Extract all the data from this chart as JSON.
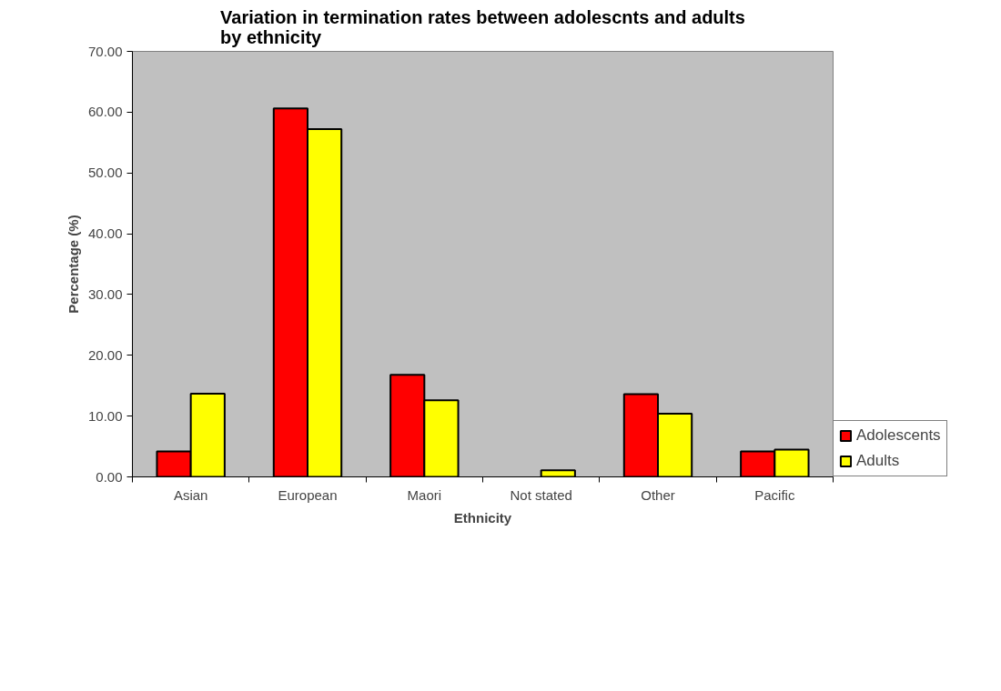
{
  "chart_data": {
    "type": "bar",
    "title": "Variation in termination rates between adolescnts and adults by ethnicity",
    "xlabel": "Ethnicity",
    "ylabel": "Percentage (%)",
    "categories": [
      "Asian",
      "European",
      "Maori",
      "Not stated",
      "Other",
      "Pacific"
    ],
    "series": [
      {
        "name": "Adolescents",
        "color": "#ff0000",
        "values": [
          4.2,
          60.6,
          16.8,
          null,
          13.6,
          4.2
        ]
      },
      {
        "name": "Adults",
        "color": "#ffff00",
        "values": [
          13.7,
          57.2,
          12.6,
          1.1,
          10.4,
          4.5
        ]
      }
    ],
    "ylim": [
      0,
      70
    ],
    "yticks": [
      {
        "value": 0,
        "label": "0.00"
      },
      {
        "value": 10,
        "label": "10.00"
      },
      {
        "value": 20,
        "label": "20.00"
      },
      {
        "value": 30,
        "label": "30.00"
      },
      {
        "value": 40,
        "label": "40.00"
      },
      {
        "value": 50,
        "label": "50.00"
      },
      {
        "value": 60,
        "label": "60.00"
      },
      {
        "value": 70,
        "label": "70.00"
      }
    ],
    "grid": false,
    "legend": "right"
  }
}
